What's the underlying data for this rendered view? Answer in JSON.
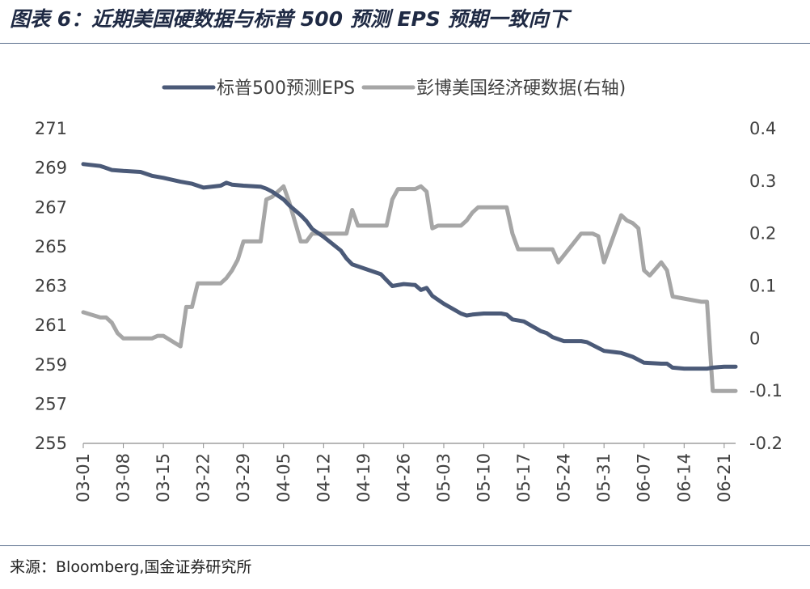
{
  "figure": {
    "title": "图表 6：近期美国硬数据与标普 500 预测 EPS 预期一致向下",
    "source": "来源：Bloomberg,国金证券研究所"
  },
  "chart_data": {
    "type": "line",
    "legend_position": "top-center",
    "grid": false,
    "x_tick_labels": [
      "03-01",
      "03-08",
      "03-15",
      "03-22",
      "03-29",
      "04-05",
      "04-12",
      "04-19",
      "04-26",
      "05-03",
      "05-10",
      "05-17",
      "05-24",
      "05-31",
      "06-07",
      "06-14",
      "06-21"
    ],
    "x_range": [
      "03-01",
      "06-23"
    ],
    "y_left": {
      "ylim": [
        255,
        271
      ],
      "ticks": [
        255,
        257,
        259,
        261,
        263,
        265,
        267,
        269,
        271
      ]
    },
    "y_right": {
      "ylim": [
        -0.2,
        0.4
      ],
      "ticks": [
        "-0.2",
        "-0.1",
        "0",
        "0.1",
        "0.2",
        "0.3",
        "0.4"
      ]
    },
    "series": [
      {
        "name": "标普500预测EPS",
        "axis": "left",
        "color": "#4b5a78",
        "x": [
          "03-01",
          "03-04",
          "03-06",
          "03-08",
          "03-11",
          "03-13",
          "03-15",
          "03-18",
          "03-20",
          "03-22",
          "03-25",
          "03-26",
          "03-27",
          "03-29",
          "04-01",
          "04-02",
          "04-03",
          "04-04",
          "04-05",
          "04-06",
          "04-08",
          "04-09",
          "04-10",
          "04-12",
          "04-15",
          "04-16",
          "04-17",
          "04-19",
          "04-22",
          "04-23",
          "04-24",
          "04-26",
          "04-28",
          "04-29",
          "04-30",
          "05-01",
          "05-03",
          "05-06",
          "05-07",
          "05-08",
          "05-10",
          "05-13",
          "05-14",
          "05-15",
          "05-17",
          "05-20",
          "05-21",
          "05-22",
          "05-24",
          "05-27",
          "05-28",
          "05-31",
          "06-03",
          "06-04",
          "06-05",
          "06-07",
          "06-10",
          "06-11",
          "06-12",
          "06-14",
          "06-17",
          "06-18",
          "06-19",
          "06-21",
          "06-23"
        ],
        "values": [
          269.2,
          269.1,
          268.9,
          268.85,
          268.8,
          268.6,
          268.5,
          268.3,
          268.2,
          268.0,
          268.1,
          268.25,
          268.15,
          268.1,
          268.05,
          267.95,
          267.8,
          267.6,
          267.4,
          267.1,
          266.6,
          266.3,
          265.9,
          265.5,
          264.8,
          264.4,
          264.1,
          263.9,
          263.6,
          263.3,
          263.0,
          263.1,
          263.05,
          262.8,
          262.9,
          262.5,
          262.1,
          261.6,
          261.5,
          261.55,
          261.6,
          261.6,
          261.55,
          261.3,
          261.2,
          260.7,
          260.6,
          260.4,
          260.2,
          260.2,
          260.15,
          259.7,
          259.6,
          259.5,
          259.4,
          259.1,
          259.05,
          259.05,
          258.85,
          258.8,
          258.8,
          258.8,
          258.85,
          258.9,
          258.9
        ]
      },
      {
        "name": "彭博美国经济硬数据(右轴)",
        "axis": "right",
        "color": "#a6a6a6",
        "x": [
          "03-01",
          "03-04",
          "03-05",
          "03-06",
          "03-07",
          "03-08",
          "03-13",
          "03-14",
          "03-15",
          "03-18",
          "03-19",
          "03-20",
          "03-21",
          "03-25",
          "03-26",
          "03-27",
          "03-28",
          "03-29",
          "04-01",
          "04-02",
          "04-03",
          "04-04",
          "04-05",
          "04-06",
          "04-08",
          "04-09",
          "04-10",
          "04-11",
          "04-12",
          "04-16",
          "04-17",
          "04-18",
          "04-19",
          "04-23",
          "04-24",
          "04-25",
          "04-28",
          "04-29",
          "04-30",
          "05-01",
          "05-02",
          "05-06",
          "05-07",
          "05-08",
          "05-09",
          "05-14",
          "05-15",
          "05-16",
          "05-20",
          "05-21",
          "05-22",
          "05-23",
          "05-27",
          "05-28",
          "05-29",
          "05-30",
          "05-31",
          "06-03",
          "06-04",
          "06-05",
          "06-06",
          "06-07",
          "06-08",
          "06-10",
          "06-11",
          "06-12",
          "06-17",
          "06-18",
          "06-19",
          "06-21",
          "06-23"
        ],
        "values": [
          0.05,
          0.04,
          0.04,
          0.03,
          0.01,
          0.0,
          0.0,
          0.005,
          0.005,
          -0.015,
          0.06,
          0.06,
          0.105,
          0.105,
          0.115,
          0.13,
          0.15,
          0.185,
          0.185,
          0.265,
          0.27,
          0.28,
          0.29,
          0.26,
          0.185,
          0.185,
          0.2,
          0.2,
          0.2,
          0.2,
          0.245,
          0.215,
          0.215,
          0.215,
          0.265,
          0.285,
          0.285,
          0.29,
          0.28,
          0.21,
          0.215,
          0.215,
          0.225,
          0.24,
          0.25,
          0.25,
          0.2,
          0.17,
          0.17,
          0.17,
          0.17,
          0.145,
          0.2,
          0.2,
          0.2,
          0.195,
          0.145,
          0.235,
          0.225,
          0.22,
          0.21,
          0.13,
          0.12,
          0.145,
          0.13,
          0.08,
          0.07,
          0.07,
          -0.1,
          -0.1,
          -0.1
        ]
      }
    ]
  }
}
